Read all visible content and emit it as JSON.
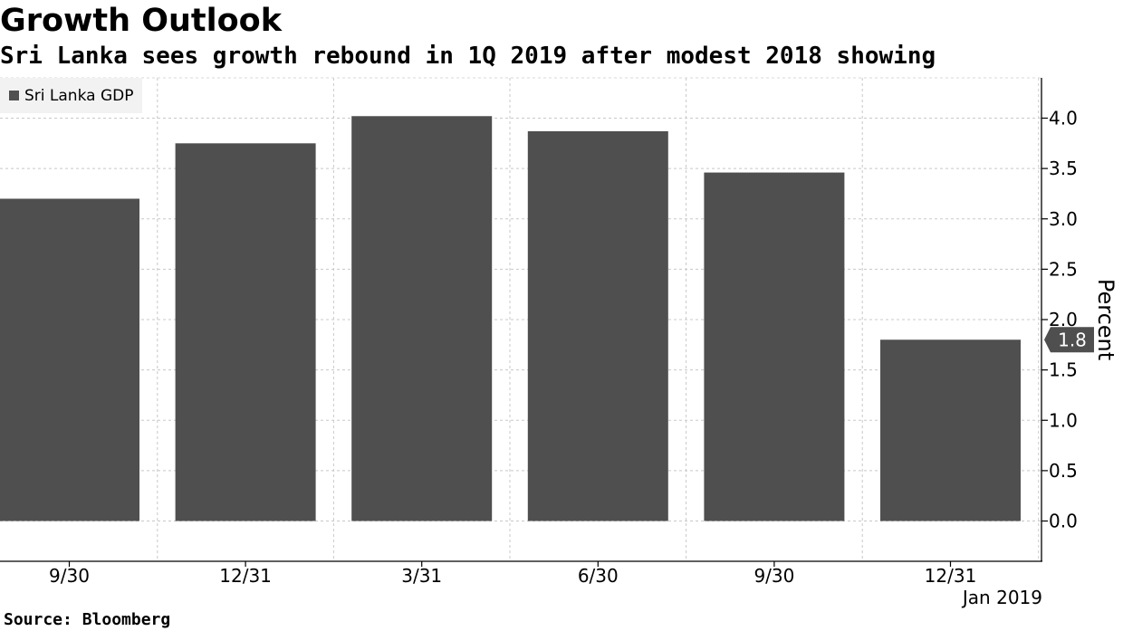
{
  "header": {
    "title": "Growth Outlook",
    "subtitle": "Sri Lanka sees growth rebound in 1Q 2019 after modest 2018 showing"
  },
  "footer": {
    "source": "Source: Bloomberg"
  },
  "chart_data": {
    "type": "bar",
    "categories": [
      "9/30",
      "12/31",
      "3/31",
      "6/30",
      "9/30",
      "12/31"
    ],
    "x_sublabel": "Jan 2019",
    "series": [
      {
        "name": "Sri Lanka GDP",
        "values": [
          3.2,
          3.75,
          4.02,
          3.87,
          3.46,
          1.8
        ]
      }
    ],
    "last_value_label": "1.8",
    "ylabel": "Percent",
    "ylim": [
      -0.4,
      4.4
    ],
    "yticks": [
      0,
      0.5,
      1,
      1.5,
      2,
      2.5,
      3,
      3.5,
      4
    ],
    "ytick_labels": [
      "0.0",
      "0.5",
      "1.0",
      "1.5",
      "2.0",
      "2.5",
      "3.0",
      "3.5",
      "4.0"
    ],
    "y_axis_side": "right",
    "grid": true,
    "legend_position": "top-left",
    "colors": {
      "bar": "#4f4f4f",
      "grid": "#c8c8c8",
      "legend_bg": "#f2f2f2"
    }
  }
}
